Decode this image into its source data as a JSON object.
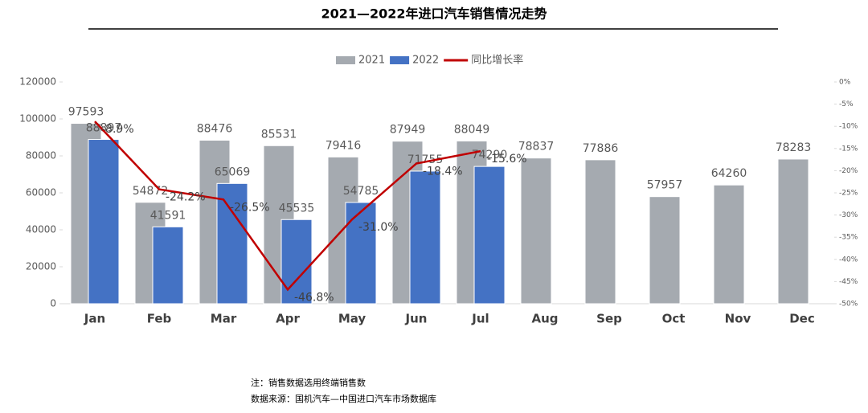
{
  "chart_data": {
    "type": "bar",
    "title": "2021—2022年进口汽车销售情况走势",
    "categories": [
      "Jan",
      "Feb",
      "Mar",
      "Apr",
      "May",
      "Jun",
      "Jul",
      "Aug",
      "Sep",
      "Oct",
      "Nov",
      "Dec"
    ],
    "series": [
      {
        "name": "2021",
        "type": "bar",
        "color": "#a5aab0",
        "values": [
          97593,
          54872,
          88476,
          85531,
          79416,
          87949,
          88049,
          78837,
          77886,
          57957,
          64260,
          78283
        ]
      },
      {
        "name": "2022",
        "type": "bar",
        "color": "#4472c4",
        "values": [
          88897,
          41591,
          65069,
          45535,
          54785,
          71755,
          74290,
          null,
          null,
          null,
          null,
          null
        ]
      },
      {
        "name": "同比增长率",
        "type": "line",
        "axis": "y2",
        "color": "#c00000",
        "values": [
          -8.9,
          -24.2,
          -26.5,
          -46.8,
          -31.0,
          -18.4,
          -15.6,
          null,
          null,
          null,
          null,
          null
        ],
        "value_labels": [
          "-8.9%",
          "-24.2%",
          "-26.5%",
          "-46.8%",
          "-31.0%",
          "-18.4%",
          "-15.6%",
          null,
          null,
          null,
          null,
          null
        ]
      }
    ],
    "ylim": [
      0,
      120000
    ],
    "yticks": [
      0,
      20000,
      40000,
      60000,
      80000,
      100000,
      120000
    ],
    "y2lim": [
      -50,
      0
    ],
    "y2ticks": [
      {
        "value": 0,
        "label": "0%"
      },
      {
        "value": -5,
        "label": "-5%"
      },
      {
        "value": -10,
        "label": "-10%"
      },
      {
        "value": -15,
        "label": "-15%"
      },
      {
        "value": -20,
        "label": "-20%"
      },
      {
        "value": -25,
        "label": "-25%"
      },
      {
        "value": -30,
        "label": "-30%"
      },
      {
        "value": -35,
        "label": "-35%"
      },
      {
        "value": -40,
        "label": "-40%"
      },
      {
        "value": -45,
        "label": "-45%"
      },
      {
        "value": -50,
        "label": "-50%"
      }
    ],
    "legend": "top",
    "notes": [
      "注：销售数据选用终端销售数",
      "数据来源：国机汽车—中国进口汽车市场数据库"
    ]
  }
}
